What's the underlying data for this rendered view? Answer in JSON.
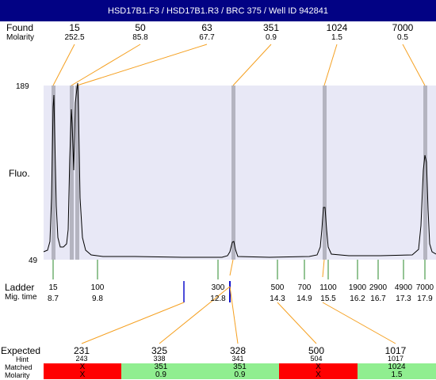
{
  "title": "HSD17B1.F3 / HSD17B1.R3 / BRC 375 / Well ID 942841",
  "found": {
    "label": "Found",
    "sublabel": "Molarity",
    "peaks": [
      {
        "size": "15",
        "molarity": "252.5"
      },
      {
        "size": "50",
        "molarity": "85.8"
      },
      {
        "size": "63",
        "molarity": "67.7"
      },
      {
        "size": "351",
        "molarity": "0.9"
      },
      {
        "size": "1024",
        "molarity": "1.5"
      },
      {
        "size": "7000",
        "molarity": "0.5"
      }
    ]
  },
  "axis": {
    "ymax": "189",
    "ymin": "49",
    "ylabel": "Fluo."
  },
  "ladder": {
    "label": "Ladder",
    "sublabel": "Mig. time",
    "items": [
      {
        "size": "15",
        "time": "8.7"
      },
      {
        "size": "100",
        "time": "9.8"
      },
      {
        "size": "300",
        "time": "12.8"
      },
      {
        "size": "500",
        "time": "14.3"
      },
      {
        "size": "700",
        "time": "14.9"
      },
      {
        "size": "1100",
        "time": "15.5"
      },
      {
        "size": "1900",
        "time": "16.2"
      },
      {
        "size": "2900",
        "time": "16.7"
      },
      {
        "size": "4900",
        "time": "17.3"
      },
      {
        "size": "7000",
        "time": "17.9"
      }
    ]
  },
  "expected": {
    "labels": {
      "expected": "Expected",
      "hint": "Hint",
      "matched": "Matched",
      "molarity": "Molarity"
    },
    "columns": [
      {
        "expected": "231",
        "hint": "243",
        "matched": "X",
        "molarity": "X",
        "status": "miss"
      },
      {
        "expected": "325",
        "hint": "338",
        "matched": "351",
        "molarity": "0.9",
        "status": "hit"
      },
      {
        "expected": "328",
        "hint": "341",
        "matched": "351",
        "molarity": "0.9",
        "status": "hit"
      },
      {
        "expected": "500",
        "hint": "504",
        "matched": "X",
        "molarity": "X",
        "status": "miss"
      },
      {
        "expected": "1017",
        "hint": "1017",
        "matched": "1024",
        "molarity": "1.5",
        "status": "hit"
      }
    ]
  },
  "colors": {
    "title_bg": "#020284",
    "plot_bg": "#e8e8f6",
    "peak_band": "#b4b4c0",
    "connector": "#f5a020",
    "ladder_tick": "#2a8a2a",
    "marker": "#1010cc",
    "miss": "#ff0000",
    "hit": "#90ee90"
  }
}
